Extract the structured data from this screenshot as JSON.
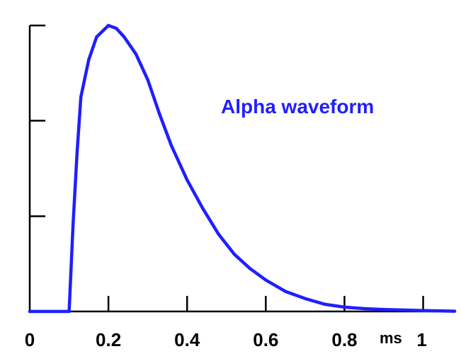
{
  "chart_data": {
    "type": "line",
    "title": "",
    "xlabel": "",
    "ylabel": "",
    "x_unit": "ms",
    "xlim": [
      0,
      1.08
    ],
    "ylim": [
      0,
      1.0
    ],
    "x_ticks": [
      {
        "value": 0,
        "label": "0"
      },
      {
        "value": 0.2,
        "label": "0.2"
      },
      {
        "value": 0.4,
        "label": "0.4"
      },
      {
        "value": 0.6,
        "label": "0.6"
      },
      {
        "value": 0.8,
        "label": "0.8"
      },
      {
        "value": 1.0,
        "label": "1"
      }
    ],
    "y_ticks": [
      0.333,
      0.667,
      1.0
    ],
    "y_tick_labels_shown": false,
    "grid": false,
    "annotation": "Alpha waveform",
    "line_color": "#1f1fff",
    "series": [
      {
        "points": [
          [
            0,
            0
          ],
          [
            0.1,
            0
          ],
          [
            0.11,
            0.3
          ],
          [
            0.12,
            0.55
          ],
          [
            0.13,
            0.75
          ],
          [
            0.15,
            0.88
          ],
          [
            0.17,
            0.96
          ],
          [
            0.2,
            1.0
          ],
          [
            0.22,
            0.99
          ],
          [
            0.24,
            0.96
          ],
          [
            0.27,
            0.9
          ],
          [
            0.3,
            0.81
          ],
          [
            0.33,
            0.69
          ],
          [
            0.36,
            0.58
          ],
          [
            0.4,
            0.46
          ],
          [
            0.44,
            0.36
          ],
          [
            0.48,
            0.27
          ],
          [
            0.52,
            0.2
          ],
          [
            0.56,
            0.15
          ],
          [
            0.6,
            0.11
          ],
          [
            0.65,
            0.07
          ],
          [
            0.7,
            0.045
          ],
          [
            0.75,
            0.025
          ],
          [
            0.8,
            0.015
          ],
          [
            0.85,
            0.01
          ],
          [
            0.9,
            0.007
          ],
          [
            0.95,
            0.005
          ],
          [
            1.0,
            0.003
          ],
          [
            1.08,
            0.001
          ]
        ]
      }
    ]
  }
}
